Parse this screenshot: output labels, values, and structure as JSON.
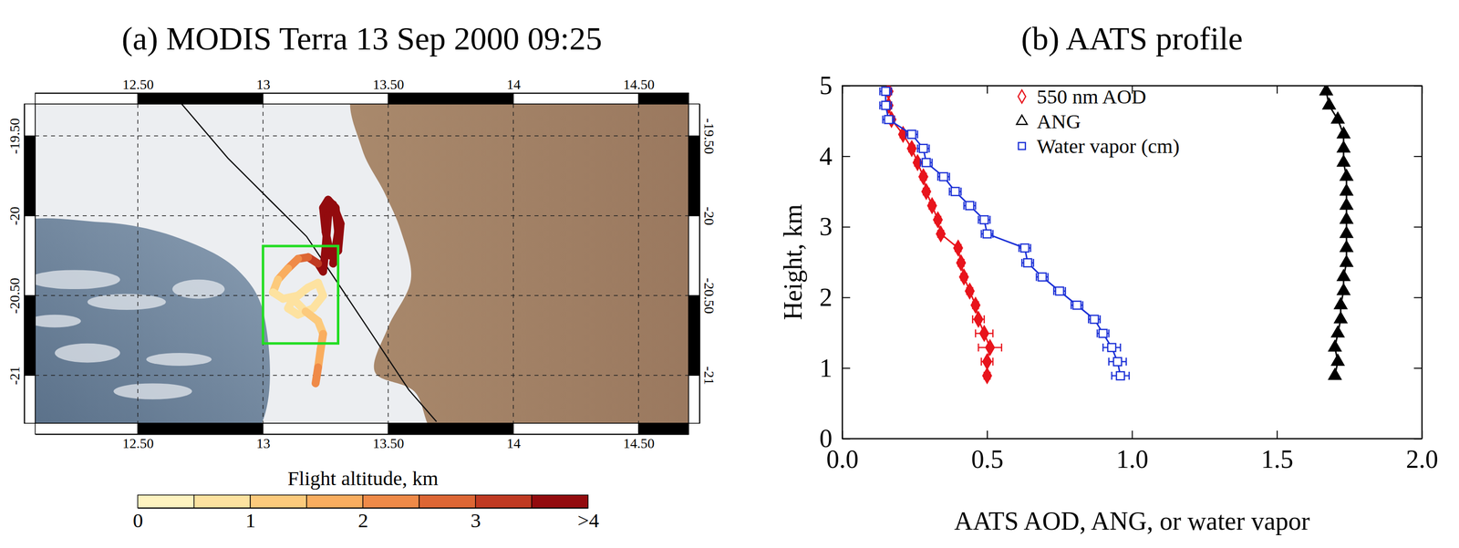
{
  "chart_data": [
    {
      "type": "map",
      "title": "(a) MODIS Terra 13 Sep 2000 09:25",
      "xlim": [
        12.09,
        14.7
      ],
      "ylim": [
        -21.3,
        -19.3
      ],
      "xticks": [
        {
          "value": 12.5,
          "label": "12.50"
        },
        13,
        {
          "value": 13.5,
          "label": "13.50"
        },
        14,
        {
          "value": 14.5,
          "label": "14.50"
        }
      ],
      "yticks": [
        -21,
        {
          "value": -20.5,
          "label": "-20.50"
        },
        -20,
        {
          "value": -19.5,
          "label": "-19.50"
        }
      ],
      "grid": true,
      "coastline": {
        "lon": [
          12.675,
          12.86,
          13.026,
          13.174,
          13.285,
          13.434,
          13.582,
          13.693
        ],
        "lat": [
          -19.3,
          -19.64,
          -19.9,
          -20.13,
          -20.39,
          -20.74,
          -21.09,
          -21.29
        ]
      },
      "box": {
        "lon": [
          13.0,
          13.3
        ],
        "lat": [
          -20.8,
          -20.19
        ]
      },
      "track": {
        "lon": [
          13.28,
          13.3,
          13.29,
          13.26,
          13.24,
          13.25,
          13.27,
          13.3,
          13.31,
          13.28,
          13.26,
          13.25,
          13.24,
          13.22,
          13.18,
          13.14,
          13.1,
          13.06,
          13.04,
          13.08,
          13.14,
          13.18,
          13.22,
          13.24,
          13.2,
          13.14,
          13.1,
          13.12,
          13.17,
          13.22,
          13.24,
          13.23,
          13.22,
          13.21
        ],
        "lat": [
          -20.3,
          -20.1,
          -19.95,
          -19.9,
          -19.95,
          -20.1,
          -20.25,
          -20.22,
          -20.05,
          -19.93,
          -20.0,
          -20.2,
          -20.35,
          -20.3,
          -20.26,
          -20.27,
          -20.33,
          -20.4,
          -20.48,
          -20.52,
          -20.5,
          -20.45,
          -20.42,
          -20.5,
          -20.58,
          -20.62,
          -20.58,
          -20.52,
          -20.6,
          -20.66,
          -20.74,
          -20.84,
          -20.95,
          -21.05
        ],
        "alt": [
          4.6,
          4.6,
          4.7,
          4.7,
          4.6,
          4.6,
          4.5,
          4.4,
          4.4,
          4.4,
          4.3,
          4.2,
          3.9,
          3.2,
          2.6,
          2.0,
          1.5,
          1.1,
          0.9,
          0.8,
          0.8,
          0.9,
          0.9,
          0.9,
          0.9,
          0.9,
          0.9,
          0.8,
          1.0,
          1.3,
          1.6,
          1.9,
          2.1,
          2.3
        ]
      },
      "colorbar": {
        "title": "Flight altitude, km",
        "range": [
          0,
          4
        ],
        "ticks": [
          0,
          1,
          2,
          3,
          {
            "value": 4,
            "label": ">4"
          }
        ],
        "colors": [
          "#fef3c0",
          "#fde2a0",
          "#fcca7c",
          "#f9ad5f",
          "#ef8a48",
          "#dd6634",
          "#c03a22",
          "#930b0e"
        ]
      }
    },
    {
      "type": "line",
      "title": "(b) AATS profile",
      "xlabel": "AATS AOD, ANG, or water vapor",
      "ylabel": "Height, km",
      "xlim": [
        0,
        2
      ],
      "ylim": [
        0,
        5
      ],
      "xticks": [
        {
          "value": 0,
          "label": "0.0"
        },
        0.5,
        {
          "value": 1,
          "label": "1.0"
        },
        1.5,
        {
          "value": 2,
          "label": "2.0"
        }
      ],
      "yticks": [
        0,
        1,
        2,
        3,
        4,
        5
      ],
      "legend": "top",
      "y": [
        4.92,
        4.72,
        4.52,
        4.31,
        4.11,
        3.91,
        3.71,
        3.5,
        3.3,
        3.1,
        2.9,
        2.7,
        2.49,
        2.29,
        2.09,
        1.89,
        1.69,
        1.49,
        1.29,
        1.09,
        0.89
      ],
      "series": [
        {
          "name": "550 nm AOD",
          "color": "#e8141c",
          "marker": "diamond",
          "line_style": "solid",
          "values": [
            0.16,
            0.16,
            0.17,
            0.21,
            0.24,
            0.26,
            0.28,
            0.29,
            0.31,
            0.33,
            0.34,
            0.4,
            0.41,
            0.42,
            0.44,
            0.46,
            0.47,
            0.49,
            0.51,
            0.5,
            0.5
          ],
          "errors": [
            0.01,
            0.01,
            0.01,
            0.01,
            0.01,
            0.01,
            0.01,
            0.01,
            0.01,
            0.01,
            0.01,
            0.01,
            0.01,
            0.01,
            0.01,
            0.01,
            0.02,
            0.03,
            0.04,
            0.02,
            0.01
          ]
        },
        {
          "name": "ANG",
          "color": "#000000",
          "marker": "triangle",
          "line_style": "solid",
          "values": [
            1.67,
            1.68,
            1.71,
            1.73,
            1.73,
            1.73,
            1.74,
            1.74,
            1.74,
            1.74,
            1.74,
            1.74,
            1.74,
            1.73,
            1.73,
            1.72,
            1.72,
            1.71,
            1.7,
            1.71,
            1.7
          ]
        },
        {
          "name": "Water vapor (cm)",
          "color": "#1a2fd6",
          "marker": "square",
          "line_style": "solid",
          "values": [
            0.15,
            0.15,
            0.16,
            0.24,
            0.28,
            0.29,
            0.35,
            0.39,
            0.44,
            0.49,
            0.5,
            0.63,
            0.64,
            0.69,
            0.75,
            0.81,
            0.87,
            0.9,
            0.93,
            0.95,
            0.96
          ],
          "errors": [
            0.02,
            0.02,
            0.02,
            0.02,
            0.02,
            0.02,
            0.02,
            0.02,
            0.02,
            0.02,
            0.02,
            0.02,
            0.02,
            0.02,
            0.02,
            0.02,
            0.02,
            0.02,
            0.03,
            0.03,
            0.03
          ]
        }
      ]
    }
  ]
}
